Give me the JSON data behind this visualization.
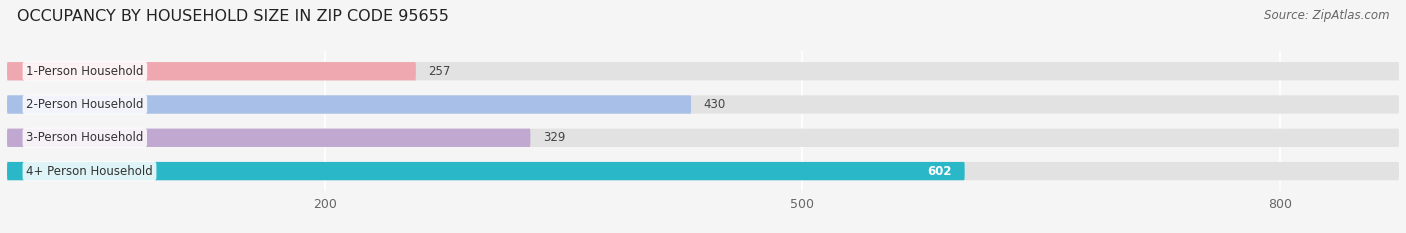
{
  "title": "OCCUPANCY BY HOUSEHOLD SIZE IN ZIP CODE 95655",
  "source": "Source: ZipAtlas.com",
  "categories": [
    "1-Person Household",
    "2-Person Household",
    "3-Person Household",
    "4+ Person Household"
  ],
  "values": [
    257,
    430,
    329,
    602
  ],
  "bar_colors": [
    "#f0a8b0",
    "#a8c0e8",
    "#c0a8d0",
    "#2ab8c8"
  ],
  "label_colors": [
    "#333333",
    "#333333",
    "#333333",
    "#ffffff"
  ],
  "xlim": [
    0,
    875
  ],
  "xticks": [
    200,
    500,
    800
  ],
  "background_color": "#f5f5f5",
  "bar_bg_color": "#e2e2e2",
  "title_fontsize": 11.5,
  "source_fontsize": 8.5,
  "label_fontsize": 8.5,
  "value_fontsize": 8.5
}
